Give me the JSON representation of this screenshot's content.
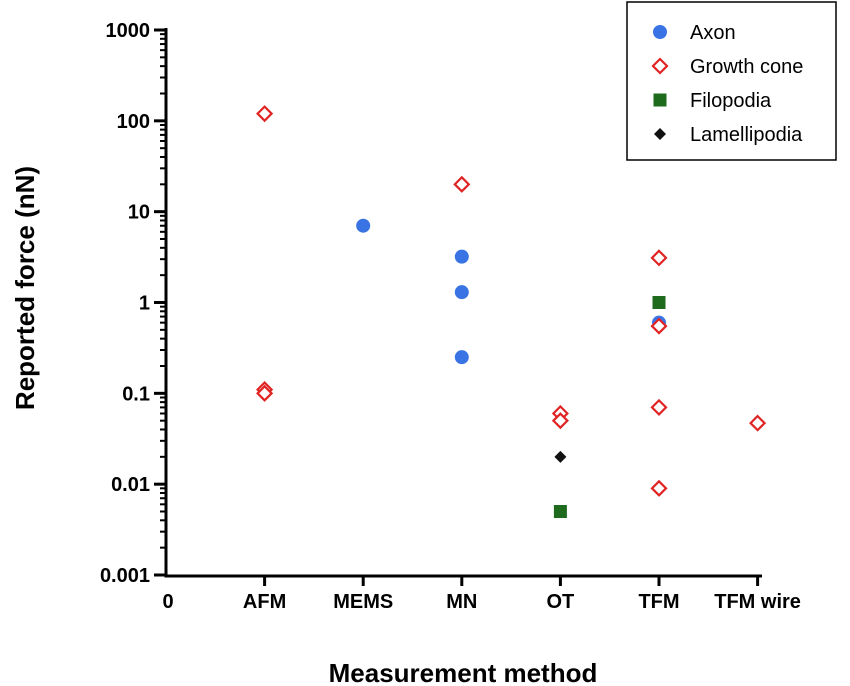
{
  "chart_data": {
    "type": "scatter",
    "title": "",
    "xlabel": "Measurement method",
    "ylabel": "Reported force (nN)",
    "yscale": "log",
    "ylim": [
      0.001,
      1000
    ],
    "y_ticks": [
      {
        "value": 1000,
        "label": "1000"
      },
      {
        "value": 100,
        "label": "100"
      },
      {
        "value": 10,
        "label": "10"
      },
      {
        "value": 1,
        "label": "1"
      },
      {
        "value": 0.1,
        "label": "0.1"
      },
      {
        "value": 0.01,
        "label": "0.01"
      },
      {
        "value": 0.001,
        "label": "0.001"
      }
    ],
    "x_origin_label": "0",
    "categories": [
      "AFM",
      "MEMS",
      "MN",
      "OT",
      "TFM",
      "TFM wire"
    ],
    "legend_position": "top-right",
    "series": [
      {
        "name": "Axon",
        "marker": "circle",
        "color": "#3a74e4",
        "filled": true,
        "points": [
          {
            "category": "MEMS",
            "y": 7
          },
          {
            "category": "MN",
            "y": 3.2
          },
          {
            "category": "MN",
            "y": 1.3
          },
          {
            "category": "MN",
            "y": 0.25
          },
          {
            "category": "TFM",
            "y": 0.6
          }
        ]
      },
      {
        "name": "Growth cone",
        "marker": "diamond",
        "color": "#e02424",
        "filled": false,
        "points": [
          {
            "category": "AFM",
            "y": 120
          },
          {
            "category": "AFM",
            "y": 0.11
          },
          {
            "category": "AFM",
            "y": 0.1
          },
          {
            "category": "MN",
            "y": 20
          },
          {
            "category": "OT",
            "y": 0.06
          },
          {
            "category": "OT",
            "y": 0.05
          },
          {
            "category": "TFM",
            "y": 3.1
          },
          {
            "category": "TFM",
            "y": 0.55
          },
          {
            "category": "TFM",
            "y": 0.07
          },
          {
            "category": "TFM",
            "y": 0.009
          },
          {
            "category": "TFM wire",
            "y": 0.047
          }
        ]
      },
      {
        "name": "Filopodia",
        "marker": "square",
        "color": "#1e6b1e",
        "filled": true,
        "points": [
          {
            "category": "TFM",
            "y": 1.0
          },
          {
            "category": "OT",
            "y": 0.005
          }
        ]
      },
      {
        "name": "Lamellipodia",
        "marker": "diamond",
        "color": "#111111",
        "filled": true,
        "points": [
          {
            "category": "OT",
            "y": 0.02
          }
        ]
      }
    ]
  }
}
